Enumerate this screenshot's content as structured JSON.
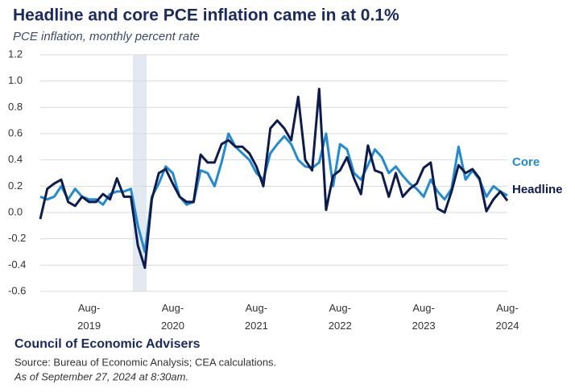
{
  "chart_data": {
    "type": "line",
    "title": "Headline and core PCE inflation came in at 0.1%",
    "subtitle": "PCE inflation, monthly percent rate",
    "organization": "Council of Economic Advisers",
    "source": "Source: Bureau of Economic Analysis; CEA calculations.",
    "as_of": "As of September 27, 2024 at 8:30am.",
    "categories": [
      null,
      null,
      null,
      null,
      null,
      null,
      null,
      "Aug-2019",
      null,
      null,
      null,
      null,
      null,
      null,
      null,
      null,
      null,
      null,
      null,
      "Aug-2020",
      null,
      null,
      null,
      null,
      null,
      null,
      null,
      null,
      null,
      null,
      null,
      "Aug-2021",
      null,
      null,
      null,
      null,
      null,
      null,
      null,
      null,
      null,
      null,
      null,
      "Aug-2022",
      null,
      null,
      null,
      null,
      null,
      null,
      null,
      null,
      null,
      null,
      null,
      "Aug-2023",
      null,
      null,
      null,
      null,
      null,
      null,
      null,
      null,
      null,
      null,
      null,
      "Aug-2024"
    ],
    "series": [
      {
        "name": "Core",
        "color": "#1f8ad6",
        "values": [
          0.12,
          0.1,
          0.12,
          0.2,
          0.1,
          0.18,
          0.12,
          0.1,
          0.1,
          0.06,
          0.14,
          0.16,
          0.16,
          0.18,
          -0.1,
          -0.3,
          0.12,
          0.22,
          0.35,
          0.3,
          0.12,
          0.06,
          0.08,
          0.32,
          0.3,
          0.2,
          0.38,
          0.6,
          0.5,
          0.45,
          0.4,
          0.3,
          0.25,
          0.45,
          0.52,
          0.58,
          0.52,
          0.4,
          0.35,
          0.34,
          0.38,
          0.6,
          0.2,
          0.52,
          0.48,
          0.3,
          0.25,
          0.36,
          0.48,
          0.42,
          0.3,
          0.35,
          0.28,
          0.22,
          0.18,
          0.12,
          0.25,
          0.16,
          0.1,
          0.18,
          0.5,
          0.25,
          0.32,
          0.25,
          0.12,
          0.2,
          0.16,
          0.13
        ]
      },
      {
        "name": "Headline",
        "color": "#0d1b4f",
        "values": [
          -0.05,
          0.18,
          0.22,
          0.25,
          0.08,
          0.05,
          0.12,
          0.08,
          0.08,
          0.14,
          0.1,
          0.26,
          0.12,
          0.12,
          -0.25,
          -0.42,
          0.1,
          0.3,
          0.33,
          0.22,
          0.12,
          0.08,
          0.08,
          0.44,
          0.38,
          0.38,
          0.52,
          0.55,
          0.5,
          0.5,
          0.45,
          0.35,
          0.2,
          0.64,
          0.7,
          0.64,
          0.55,
          0.88,
          0.4,
          0.32,
          0.94,
          0.02,
          0.28,
          0.32,
          0.42,
          0.26,
          0.14,
          0.51,
          0.32,
          0.3,
          0.12,
          0.3,
          0.12,
          0.18,
          0.22,
          0.34,
          0.38,
          0.03,
          0.0,
          0.16,
          0.36,
          0.3,
          0.33,
          0.26,
          0.01,
          0.1,
          0.16,
          0.09
        ]
      }
    ],
    "ylim": [
      -0.6,
      1.2
    ],
    "yticks": [
      {
        "value": 1.2,
        "label": "1.2"
      },
      {
        "value": 1,
        "label": "1.0"
      },
      0.8,
      0.6,
      0.4,
      0.2,
      {
        "value": 0,
        "label": "0.0"
      },
      -0.2,
      -0.4,
      -0.6
    ],
    "grid": true
  }
}
